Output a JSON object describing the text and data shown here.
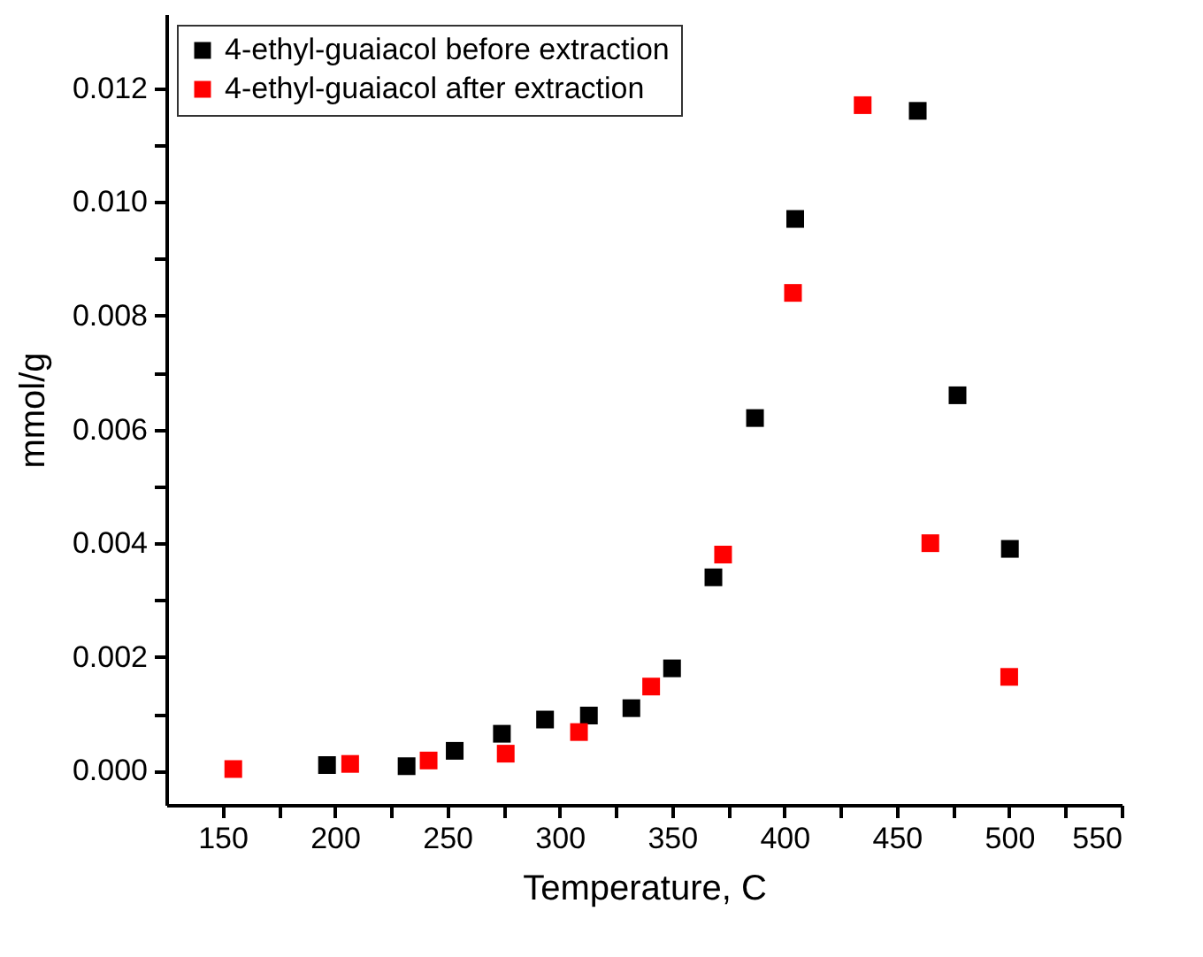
{
  "chart_data": {
    "type": "scatter",
    "xlabel": "Temperature, C",
    "ylabel": "mmol/g",
    "xlim": [
      125,
      550
    ],
    "ylim": [
      -0.0006,
      0.0133
    ],
    "xticks": [
      150,
      {
        "value": 175,
        "label": null
      },
      200,
      {
        "value": 225,
        "label": null
      },
      250,
      {
        "value": 275,
        "label": null
      },
      300,
      {
        "value": 325,
        "label": null
      },
      350,
      {
        "value": 375,
        "label": null
      },
      400,
      {
        "value": 425,
        "label": null
      },
      450,
      {
        "value": 475,
        "label": null
      },
      500,
      {
        "value": 525,
        "label": null
      },
      550
    ],
    "yticks": [
      {
        "value": 0,
        "label": "0.000"
      },
      {
        "value": 0.001,
        "label": null
      },
      {
        "value": 0.002,
        "label": "0.002"
      },
      {
        "value": 0.003,
        "label": null
      },
      {
        "value": 0.004,
        "label": "0.004"
      },
      {
        "value": 0.005,
        "label": null
      },
      {
        "value": 0.006,
        "label": "0.006"
      },
      {
        "value": 0.007,
        "label": null
      },
      {
        "value": 0.008,
        "label": "0.008"
      },
      {
        "value": 0.009,
        "label": null
      },
      {
        "value": 0.01,
        "label": "0.010"
      },
      {
        "value": 0.011,
        "label": null
      },
      {
        "value": 0.012,
        "label": "0.012"
      }
    ],
    "grid": false,
    "legend": "top left",
    "marker": "square",
    "series": [
      {
        "name": "4-ethyl-guaiacol before extraction",
        "color": "#000000",
        "x": [
          196.5,
          231.9,
          253.3,
          274.3,
          293.5,
          313,
          331.9,
          350,
          368.4,
          386.9,
          404.8,
          459.3,
          477,
          500.3
        ],
        "values": [
          0.0001,
          8e-05,
          0.00035,
          0.00065,
          0.0009,
          0.00097,
          0.0011,
          0.0018,
          0.0034,
          0.0062,
          0.0097,
          0.0116,
          0.0066,
          0.0039
        ]
      },
      {
        "name": "4-ethyl-guaiacol after extraction",
        "color": "#ff0000",
        "x": [
          154.8,
          206.8,
          241.7,
          276,
          308.6,
          340.7,
          372.7,
          403.8,
          434.8,
          464.9,
          500
        ],
        "values": [
          3e-05,
          0.00012,
          0.00018,
          0.0003,
          0.00068,
          0.00148,
          0.0038,
          0.0084,
          0.0117,
          0.004,
          0.00165
        ]
      }
    ]
  }
}
